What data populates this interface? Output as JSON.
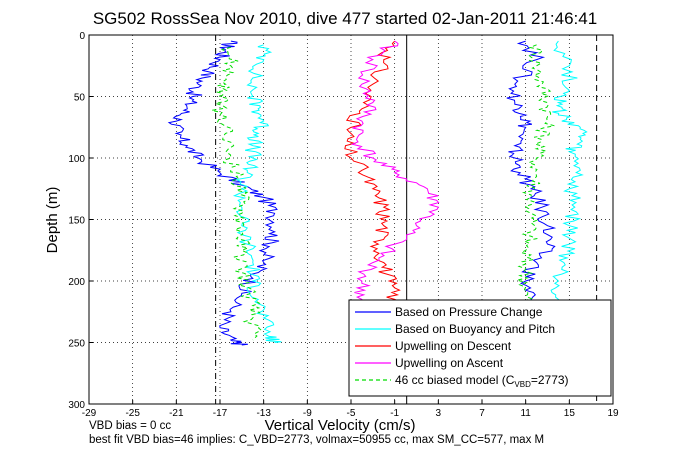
{
  "chart_data": {
    "type": "line",
    "title": "SG502 RossSea Nov 2010, dive 477 started 02-Jan-2011 21:46:41",
    "xlabel": "Vertical Velocity (cm/s)",
    "ylabel": "Depth (m)",
    "xlim": [
      -29,
      19
    ],
    "ylim": [
      0,
      300
    ],
    "y_reversed": true,
    "xticks": [
      "-29",
      "-25",
      "-21",
      "-17",
      "-13",
      "-9",
      "-5",
      "-1",
      "3",
      "7",
      "11",
      "15",
      "19"
    ],
    "yticks": [
      "0",
      "50",
      "100",
      "150",
      "200",
      "250",
      "300"
    ],
    "grid": true,
    "legend_position": "bottom-right",
    "vertical_lines": [
      {
        "style": "dash-dot",
        "x": -17.4
      },
      {
        "style": "dashed",
        "x": 17.5
      },
      {
        "style": "solid",
        "x": 0.1
      }
    ],
    "series": [
      {
        "name": "Based on Pressure Change",
        "color": "#0000ff",
        "descent": [
          [
            -16,
            5
          ],
          [
            -16.5,
            12
          ],
          [
            -17,
            20
          ],
          [
            -18,
            30
          ],
          [
            -19,
            40
          ],
          [
            -19.5,
            50
          ],
          [
            -20,
            60
          ],
          [
            -21,
            70
          ],
          [
            -21,
            80
          ],
          [
            -20,
            90
          ],
          [
            -19,
            100
          ],
          [
            -17,
            112
          ],
          [
            -15,
            122
          ],
          [
            -13,
            132
          ],
          [
            -12,
            145
          ],
          [
            -12,
            160
          ],
          [
            -12.5,
            172
          ],
          [
            -13,
            185
          ],
          [
            -14,
            198
          ],
          [
            -15,
            210
          ],
          [
            -16,
            225
          ],
          [
            -17,
            238
          ],
          [
            -16,
            248
          ],
          [
            -15,
            252
          ]
        ],
        "ascent": [
          [
            11,
            5
          ],
          [
            12,
            20
          ],
          [
            10,
            40
          ],
          [
            10,
            55
          ],
          [
            11,
            65
          ],
          [
            11,
            75
          ],
          [
            10,
            90
          ],
          [
            10,
            100
          ],
          [
            10.5,
            112
          ],
          [
            11.5,
            125
          ],
          [
            12.5,
            140
          ],
          [
            13,
            155
          ],
          [
            13,
            170
          ],
          [
            12,
            185
          ],
          [
            11,
            200
          ],
          [
            11.5,
            215
          ],
          [
            12,
            230
          ],
          [
            12,
            245
          ]
        ]
      },
      {
        "name": "Based on Buoyancy and Pitch",
        "color": "#00ffff",
        "descent": [
          [
            -13,
            8
          ],
          [
            -13,
            20
          ],
          [
            -14,
            35
          ],
          [
            -14,
            50
          ],
          [
            -13.5,
            60
          ],
          [
            -13,
            70
          ],
          [
            -13.5,
            80
          ],
          [
            -14,
            90
          ],
          [
            -14,
            100
          ],
          [
            -14.5,
            110
          ],
          [
            -15,
            125
          ],
          [
            -15,
            140
          ],
          [
            -15,
            155
          ],
          [
            -14.5,
            170
          ],
          [
            -14,
            185
          ],
          [
            -14,
            200
          ],
          [
            -13.5,
            215
          ],
          [
            -13,
            230
          ],
          [
            -12.5,
            245
          ],
          [
            -12,
            250
          ]
        ],
        "ascent": [
          [
            14,
            5
          ],
          [
            15,
            25
          ],
          [
            15,
            45
          ],
          [
            14,
            55
          ],
          [
            14,
            65
          ],
          [
            16,
            75
          ],
          [
            16,
            85
          ],
          [
            15,
            95
          ],
          [
            16,
            110
          ],
          [
            15,
            125
          ],
          [
            15.5,
            140
          ],
          [
            15,
            155
          ],
          [
            15,
            170
          ],
          [
            14.5,
            185
          ],
          [
            14,
            200
          ],
          [
            14,
            215
          ],
          [
            14,
            230
          ],
          [
            14,
            245
          ]
        ]
      },
      {
        "name": "Upwelling on Descent",
        "color": "#ff0000",
        "descent": [
          [
            -1,
            5
          ],
          [
            -2,
            20
          ],
          [
            -3,
            40
          ],
          [
            -4,
            60
          ],
          [
            -5,
            75
          ],
          [
            -5.5,
            90
          ],
          [
            -4,
            110
          ],
          [
            -3,
            125
          ],
          [
            -2,
            140
          ],
          [
            -2,
            155
          ],
          [
            -2.5,
            170
          ],
          [
            -2,
            185
          ],
          [
            -1.5,
            200
          ],
          [
            -1,
            215
          ],
          [
            -2,
            230
          ],
          [
            -3,
            245
          ],
          [
            -4,
            252
          ]
        ]
      },
      {
        "name": "Upwelling on Ascent",
        "color": "#ff00ff",
        "ascent": [
          [
            -1,
            5
          ],
          [
            -3,
            20
          ],
          [
            -4,
            40
          ],
          [
            -3,
            55
          ],
          [
            -4,
            70
          ],
          [
            -4.5,
            85
          ],
          [
            -3,
            100
          ],
          [
            -1,
            112
          ],
          [
            2,
            125
          ],
          [
            3,
            140
          ],
          [
            1,
            155
          ],
          [
            -1,
            170
          ],
          [
            -3,
            185
          ],
          [
            -4,
            200
          ],
          [
            -4,
            215
          ],
          [
            -4,
            230
          ],
          [
            -4,
            245
          ],
          [
            -4.5,
            252
          ]
        ]
      },
      {
        "name": "46 cc biased model (C",
        "sub": "VBD",
        "suffix": "=2773)",
        "color": "#00dd00",
        "dashed": true,
        "descent": [
          [
            -16,
            10
          ],
          [
            -16,
            25
          ],
          [
            -16.5,
            40
          ],
          [
            -17,
            50
          ],
          [
            -17,
            65
          ],
          [
            -16.5,
            80
          ],
          [
            -16,
            100
          ],
          [
            -15.5,
            115
          ],
          [
            -15,
            130
          ],
          [
            -15,
            145
          ],
          [
            -15,
            160
          ],
          [
            -15,
            175
          ],
          [
            -15,
            190
          ],
          [
            -14.5,
            205
          ],
          [
            -14,
            220
          ],
          [
            -14,
            235
          ],
          [
            -14,
            248
          ]
        ],
        "ascent": [
          [
            12,
            8
          ],
          [
            12,
            25
          ],
          [
            12.5,
            40
          ],
          [
            13,
            55
          ],
          [
            13,
            70
          ],
          [
            12.5,
            85
          ],
          [
            12,
            100
          ],
          [
            12,
            115
          ],
          [
            11.5,
            130
          ],
          [
            11.5,
            145
          ],
          [
            11.5,
            160
          ],
          [
            11,
            175
          ],
          [
            11,
            190
          ],
          [
            11,
            205
          ],
          [
            11,
            220
          ],
          [
            11.5,
            235
          ],
          [
            12,
            248
          ]
        ]
      }
    ]
  },
  "footer": {
    "line1": "VBD bias = 0 cc",
    "line2": "best fit VBD bias=46 implies: C_VBD=2773, volmax=50955 cc, max SM_CC=577, max M"
  }
}
